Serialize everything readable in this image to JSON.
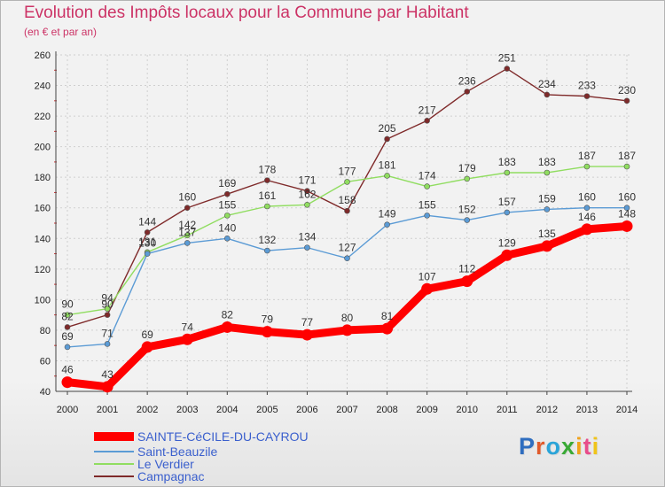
{
  "title": "Evolution des Impôts locaux pour la Commune par Habitant",
  "subtitle": "(en € et par an)",
  "logo": "Proxiti",
  "chart_data": {
    "type": "line",
    "title": "Evolution des Impôts locaux pour la Commune par Habitant",
    "subtitle": "(en € et par an)",
    "xlabel": "",
    "ylabel": "",
    "ylim": [
      40,
      260
    ],
    "yticks": [
      40,
      60,
      80,
      100,
      120,
      140,
      160,
      180,
      200,
      220,
      240,
      260
    ],
    "grid": true,
    "legend": "bottom-left",
    "categories": [
      "2000",
      "2001",
      "2002",
      "2003",
      "2004",
      "2005",
      "2006",
      "2007",
      "2008",
      "2009",
      "2010",
      "2011",
      "2012",
      "2013",
      "2014"
    ],
    "series": [
      {
        "name": "SAINTE-CéCILE-DU-CAYROU",
        "color": "#ff0000",
        "values": [
          46,
          43,
          69,
          74,
          82,
          79,
          77,
          80,
          81,
          107,
          112,
          129,
          135,
          146,
          148
        ]
      },
      {
        "name": "Saint-Beauzile",
        "color": "#5b9bd5",
        "values": [
          69,
          71,
          130,
          137,
          140,
          132,
          134,
          127,
          149,
          155,
          152,
          157,
          159,
          160,
          160
        ]
      },
      {
        "name": "Le Verdier",
        "color": "#90dd60",
        "values": [
          90,
          94,
          131,
          142,
          155,
          161,
          162,
          177,
          181,
          174,
          179,
          183,
          183,
          187,
          187
        ]
      },
      {
        "name": "Campagnac",
        "color": "#7f2a2a",
        "values": [
          82,
          90,
          144,
          160,
          169,
          178,
          171,
          158,
          205,
          217,
          236,
          251,
          234,
          233,
          230
        ]
      }
    ]
  }
}
